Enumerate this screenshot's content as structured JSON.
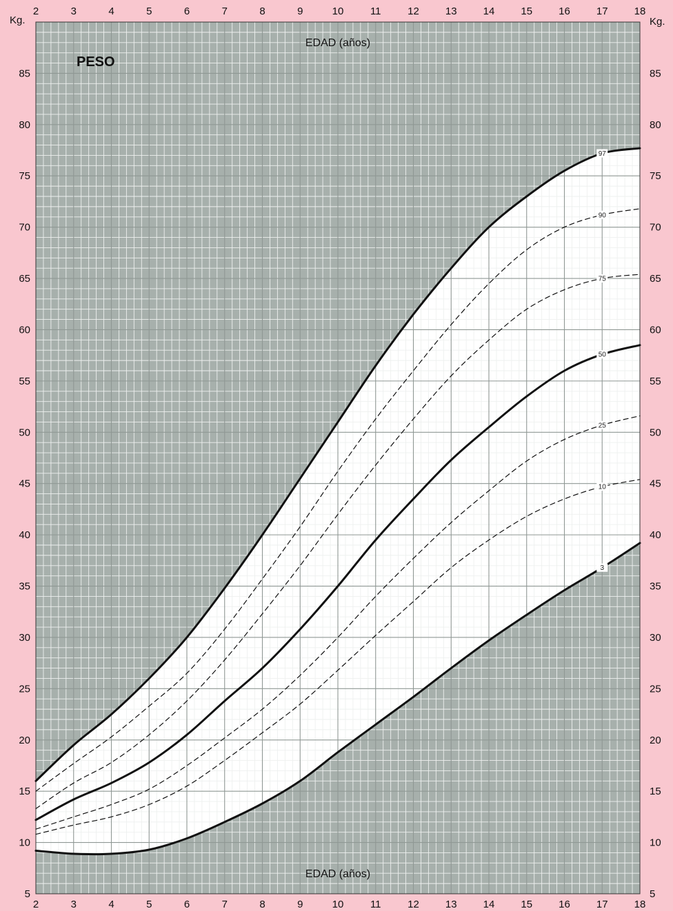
{
  "chart_data": {
    "type": "line",
    "title": "PESO",
    "xlabel": "EDAD (años)",
    "ylabel": "Kg.",
    "xlim": [
      2,
      18
    ],
    "ylim": [
      5,
      90
    ],
    "x_ticks": [
      2,
      3,
      4,
      5,
      6,
      7,
      8,
      9,
      10,
      11,
      12,
      13,
      14,
      15,
      16,
      17,
      18
    ],
    "y_ticks": [
      5,
      10,
      15,
      20,
      25,
      30,
      35,
      40,
      45,
      50,
      55,
      60,
      65,
      70,
      75,
      80,
      85
    ],
    "grid": true,
    "x": [
      2,
      3,
      4,
      5,
      6,
      7,
      8,
      9,
      10,
      11,
      12,
      13,
      14,
      15,
      16,
      17,
      18
    ],
    "series": [
      {
        "name": "97",
        "style": "solid",
        "values": [
          16.0,
          19.5,
          22.5,
          26.0,
          30.0,
          34.8,
          40.0,
          45.5,
          51.0,
          56.5,
          61.5,
          66.0,
          70.0,
          73.0,
          75.5,
          77.2,
          77.7
        ]
      },
      {
        "name": "90",
        "style": "dashed",
        "values": [
          15.0,
          17.7,
          20.3,
          23.3,
          26.5,
          30.8,
          35.7,
          40.8,
          46.2,
          51.3,
          56.0,
          60.5,
          64.5,
          67.8,
          70.0,
          71.2,
          71.8
        ]
      },
      {
        "name": "75",
        "style": "dashed",
        "values": [
          13.3,
          15.8,
          17.8,
          20.5,
          23.8,
          27.8,
          32.3,
          37.0,
          42.0,
          46.8,
          51.3,
          55.5,
          59.0,
          62.0,
          63.9,
          65.0,
          65.4
        ]
      },
      {
        "name": "50",
        "style": "solid",
        "values": [
          12.2,
          14.2,
          15.8,
          17.8,
          20.5,
          23.8,
          27.0,
          30.8,
          35.0,
          39.5,
          43.5,
          47.3,
          50.5,
          53.5,
          56.0,
          57.6,
          58.5
        ]
      },
      {
        "name": "25",
        "style": "dashed",
        "values": [
          11.3,
          12.5,
          13.7,
          15.2,
          17.5,
          20.2,
          23.0,
          26.3,
          30.0,
          34.0,
          37.7,
          41.2,
          44.3,
          47.2,
          49.3,
          50.7,
          51.6
        ]
      },
      {
        "name": "10",
        "style": "dashed",
        "values": [
          10.8,
          11.7,
          12.5,
          13.7,
          15.5,
          18.0,
          20.7,
          23.5,
          26.8,
          30.2,
          33.5,
          36.8,
          39.5,
          41.8,
          43.5,
          44.7,
          45.4
        ]
      },
      {
        "name": "3",
        "style": "solid",
        "values": [
          9.2,
          8.9,
          8.9,
          9.3,
          10.4,
          12.0,
          13.8,
          16.0,
          18.8,
          21.5,
          24.2,
          27.0,
          29.7,
          32.2,
          34.6,
          36.8,
          39.2
        ]
      }
    ]
  }
}
